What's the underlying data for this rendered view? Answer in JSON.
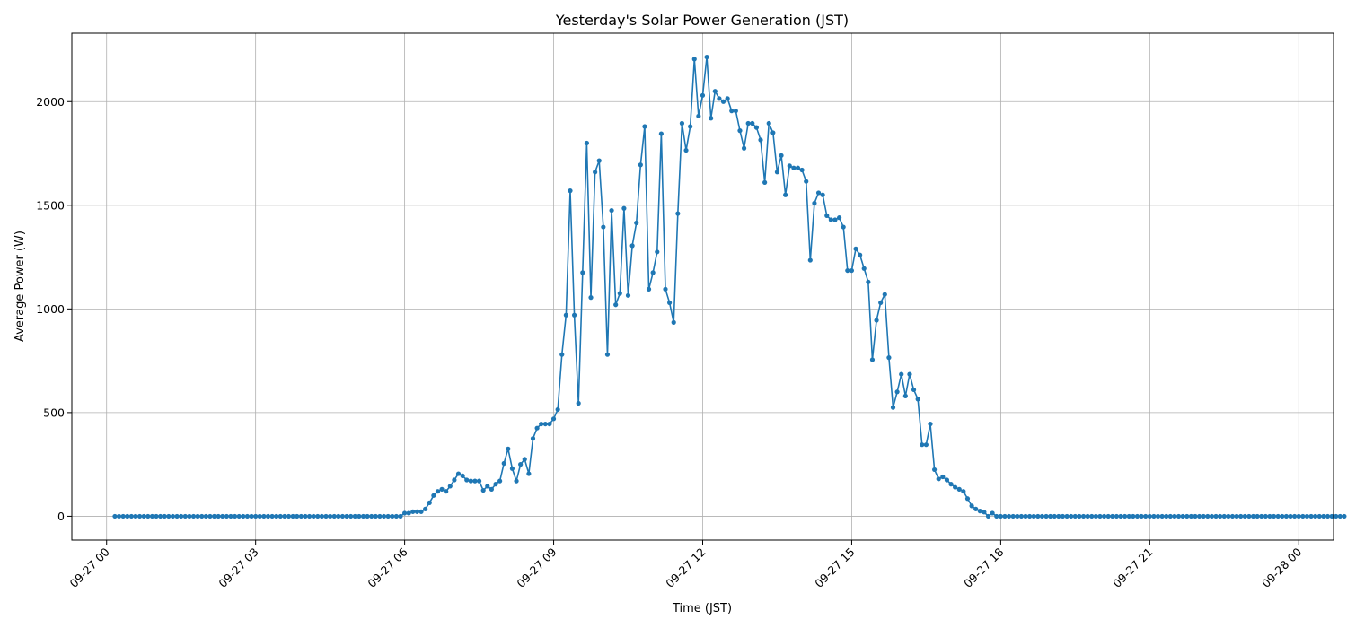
{
  "chart_data": {
    "type": "line",
    "title": "Yesterday's Solar Power Generation (JST)",
    "xlabel": "Time (JST)",
    "ylabel": "Average Power (W)",
    "x_unit": "hours since 09-27 00:00",
    "xlim": [
      -0.7,
      24.7
    ],
    "ylim": [
      -115,
      2330
    ],
    "grid": true,
    "color": "#1f77b4",
    "xticks": [
      {
        "value": 0,
        "label": "09-27 00"
      },
      {
        "value": 3,
        "label": "09-27 03"
      },
      {
        "value": 6,
        "label": "09-27 06"
      },
      {
        "value": 9,
        "label": "09-27 09"
      },
      {
        "value": 12,
        "label": "09-27 12"
      },
      {
        "value": 15,
        "label": "09-27 15"
      },
      {
        "value": 18,
        "label": "09-27 18"
      },
      {
        "value": 21,
        "label": "09-27 21"
      },
      {
        "value": 24,
        "label": "09-28 00"
      }
    ],
    "yticks": [
      {
        "value": 0,
        "label": "0"
      },
      {
        "value": 500,
        "label": "500"
      },
      {
        "value": 1000,
        "label": "1000"
      },
      {
        "value": 1500,
        "label": "1500"
      },
      {
        "value": 2000,
        "label": "2000"
      }
    ],
    "series": [
      {
        "name": "Average Power",
        "x_start": 0.1667,
        "x_step": 0.08333,
        "values": [
          0,
          0,
          0,
          0,
          0,
          0,
          0,
          0,
          0,
          0,
          0,
          0,
          0,
          0,
          0,
          0,
          0,
          0,
          0,
          0,
          0,
          0,
          0,
          0,
          0,
          0,
          0,
          0,
          0,
          0,
          0,
          0,
          0,
          0,
          0,
          0,
          0,
          0,
          0,
          0,
          0,
          0,
          0,
          0,
          0,
          0,
          0,
          0,
          0,
          0,
          0,
          0,
          0,
          0,
          0,
          0,
          0,
          0,
          0,
          0,
          0,
          0,
          0,
          0,
          0,
          0,
          0,
          0,
          0,
          0,
          15,
          15,
          22,
          22,
          22,
          35,
          65,
          100,
          120,
          130,
          120,
          145,
          175,
          205,
          195,
          175,
          170,
          170,
          170,
          125,
          145,
          130,
          155,
          170,
          255,
          325,
          230,
          170,
          250,
          275,
          205,
          375,
          425,
          445,
          445,
          445,
          470,
          515,
          780,
          970,
          1570,
          970,
          545,
          1175,
          1800,
          1055,
          1660,
          1715,
          1395,
          780,
          1475,
          1020,
          1075,
          1485,
          1065,
          1305,
          1415,
          1695,
          1880,
          1095,
          1175,
          1275,
          1845,
          1095,
          1030,
          935,
          1460,
          1895,
          1765,
          1880,
          2205,
          1930,
          2030,
          2215,
          1920,
          2050,
          2015,
          2000,
          2015,
          1955,
          1955,
          1860,
          1775,
          1895,
          1895,
          1875,
          1815,
          1610,
          1895,
          1850,
          1660,
          1740,
          1550,
          1690,
          1680,
          1680,
          1670,
          1615,
          1235,
          1510,
          1560,
          1550,
          1450,
          1430,
          1430,
          1440,
          1395,
          1185,
          1185,
          1290,
          1260,
          1195,
          1130,
          755,
          945,
          1030,
          1070,
          765,
          525,
          600,
          685,
          580,
          685,
          610,
          565,
          345,
          345,
          445,
          225,
          180,
          190,
          175,
          155,
          140,
          130,
          120,
          85,
          50,
          35,
          25,
          20,
          0,
          15,
          0,
          0,
          0,
          0,
          0,
          0,
          0,
          0,
          0,
          0,
          0,
          0,
          0,
          0,
          0,
          0,
          0,
          0,
          0,
          0,
          0,
          0,
          0,
          0,
          0,
          0,
          0,
          0,
          0,
          0,
          0,
          0,
          0,
          0,
          0,
          0,
          0,
          0,
          0,
          0,
          0,
          0,
          0,
          0,
          0,
          0,
          0,
          0,
          0,
          0,
          0,
          0,
          0,
          0,
          0,
          0,
          0,
          0,
          0,
          0,
          0,
          0,
          0,
          0,
          0,
          0,
          0,
          0,
          0,
          0,
          0,
          0,
          0,
          0,
          0,
          0,
          0,
          0,
          0,
          0,
          0,
          0,
          0,
          0,
          0
        ]
      }
    ]
  }
}
